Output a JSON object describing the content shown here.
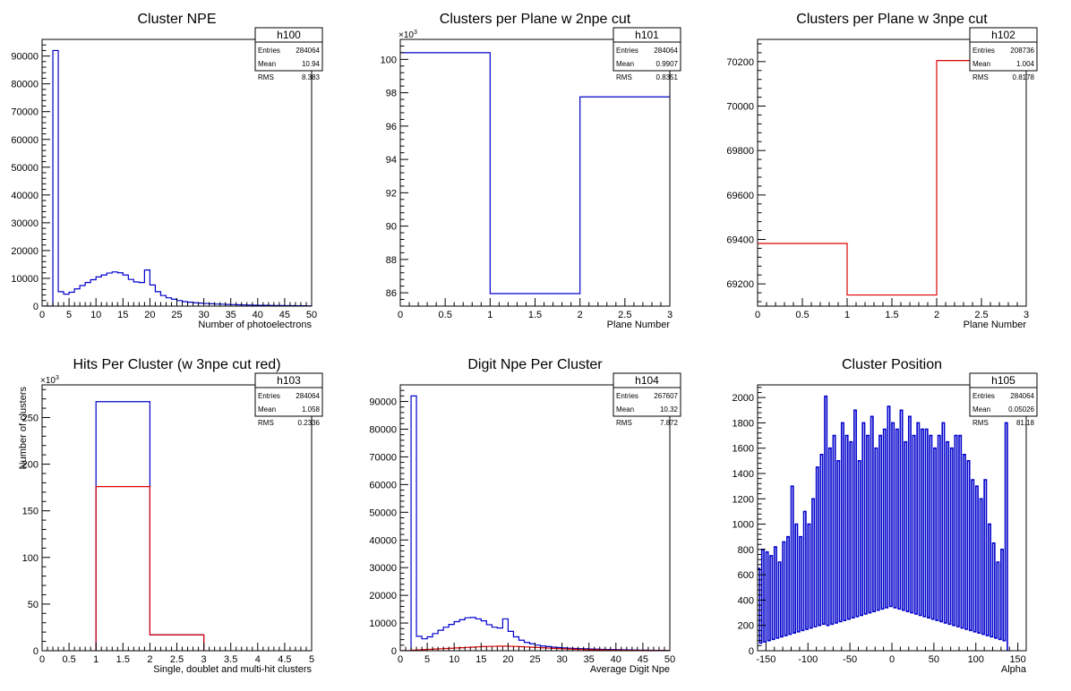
{
  "chart_data": [
    {
      "type": "histogram",
      "title": "Cluster NPE",
      "xlabel": "Number of photoelectrons",
      "ylabel": "",
      "xlim": [
        0,
        50
      ],
      "ylim": [
        0,
        96000
      ],
      "exponent": "",
      "xticks": [
        0,
        5,
        10,
        15,
        20,
        25,
        30,
        35,
        40,
        45,
        50
      ],
      "yticks": [
        0,
        10000,
        20000,
        30000,
        40000,
        50000,
        60000,
        70000,
        80000,
        90000
      ],
      "stats": {
        "name": "h100",
        "rows": [
          [
            "Entries",
            "284064"
          ],
          [
            "Mean",
            "10.94"
          ],
          [
            "RMS",
            "8.383"
          ]
        ]
      },
      "series": [
        {
          "color": "#0000cc",
          "x_start": 0,
          "bin_width": 1,
          "values": [
            0,
            0,
            92000,
            5200,
            4300,
            5000,
            6200,
            7400,
            8500,
            9500,
            10500,
            11200,
            11900,
            12300,
            12000,
            11200,
            9600,
            8700,
            8500,
            13000,
            7600,
            5200,
            3800,
            3000,
            2500,
            2000,
            1600,
            1400,
            1200,
            1100,
            950,
            850,
            750,
            700,
            600,
            550,
            480,
            430,
            380,
            340,
            300,
            270,
            240,
            210,
            190,
            170,
            150,
            130,
            110,
            90
          ]
        }
      ]
    },
    {
      "type": "histogram",
      "title": "Clusters per Plane w 2npe cut",
      "xlabel": "Plane Number",
      "ylabel": "",
      "xlim": [
        0,
        3
      ],
      "ylim": [
        85.2,
        101.2
      ],
      "exponent": "×10³",
      "xticks": [
        0,
        0.5,
        1,
        1.5,
        2,
        2.5,
        3
      ],
      "yticks": [
        86,
        88,
        90,
        92,
        94,
        96,
        98,
        100
      ],
      "stats": {
        "name": "h101",
        "rows": [
          [
            "Entries",
            "284064"
          ],
          [
            "Mean",
            "0.9907"
          ],
          [
            "RMS",
            "0.8351"
          ]
        ]
      },
      "series": [
        {
          "color": "#0000cc",
          "x_start": 0,
          "bin_width": 1,
          "values": [
            100.4,
            85.95,
            97.75
          ]
        }
      ]
    },
    {
      "type": "histogram",
      "title": "Clusters per Plane w 3npe cut",
      "xlabel": "Plane Number",
      "ylabel": "",
      "xlim": [
        0,
        3
      ],
      "ylim": [
        69100,
        70300
      ],
      "exponent": "",
      "xticks": [
        0,
        0.5,
        1,
        1.5,
        2,
        2.5,
        3
      ],
      "yticks": [
        69200,
        69400,
        69600,
        69800,
        70000,
        70200
      ],
      "stats": {
        "name": "h102",
        "rows": [
          [
            "Entries",
            "208736"
          ],
          [
            "Mean",
            "1.004"
          ],
          [
            "RMS",
            "0.8178"
          ]
        ]
      },
      "series": [
        {
          "color": "#dd0000",
          "x_start": 0,
          "bin_width": 1,
          "values": [
            69382,
            69150,
            70205
          ]
        }
      ]
    },
    {
      "type": "histogram",
      "title": "Hits Per Cluster (w 3npe cut red)",
      "xlabel": "Single, doublet and multi-hit clusters",
      "ylabel": "Number of clusters",
      "xlim": [
        0,
        5
      ],
      "ylim": [
        0,
        285
      ],
      "exponent": "×10³",
      "xticks": [
        0,
        0.5,
        1,
        1.5,
        2,
        2.5,
        3,
        3.5,
        4,
        4.5,
        5
      ],
      "yticks": [
        0,
        50,
        100,
        150,
        200,
        250
      ],
      "stats": {
        "name": "h103",
        "rows": [
          [
            "Entries",
            "284064"
          ],
          [
            "Mean",
            "1.058"
          ],
          [
            "RMS",
            "0.2336"
          ]
        ]
      },
      "series": [
        {
          "color": "#0000cc",
          "x_start": 1,
          "bin_width": 1,
          "values": [
            267,
            17
          ]
        },
        {
          "color": "#dd0000",
          "x_start": 1,
          "bin_width": 1,
          "values": [
            176,
            17
          ]
        }
      ]
    },
    {
      "type": "histogram",
      "title": "Digit Npe Per Cluster",
      "xlabel": "Average Digit Npe",
      "ylabel": "",
      "xlim": [
        0,
        50
      ],
      "ylim": [
        0,
        96000
      ],
      "exponent": "",
      "xticks": [
        0,
        5,
        10,
        15,
        20,
        25,
        30,
        35,
        40,
        45,
        50
      ],
      "yticks": [
        0,
        10000,
        20000,
        30000,
        40000,
        50000,
        60000,
        70000,
        80000,
        90000
      ],
      "stats": {
        "name": "h104",
        "rows": [
          [
            "Entries",
            "267607"
          ],
          [
            "Mean",
            "10.32"
          ],
          [
            "RMS",
            "7.872"
          ]
        ]
      },
      "series": [
        {
          "color": "#0000cc",
          "x_start": 0,
          "bin_width": 1,
          "values": [
            0,
            0,
            92000,
            5200,
            4300,
            5000,
            6200,
            7400,
            8500,
            9500,
            10500,
            11200,
            11900,
            12000,
            11500,
            10800,
            9400,
            8500,
            8200,
            11500,
            7000,
            5000,
            3800,
            3000,
            2500,
            2000,
            1700,
            1500,
            1300,
            1150,
            1000,
            900,
            800,
            750,
            680,
            620,
            560,
            500,
            450,
            400,
            360,
            320,
            280,
            250,
            220,
            190,
            160,
            140,
            120,
            100
          ]
        },
        {
          "color": "#dd0000",
          "x_start": 0,
          "bin_width": 1,
          "values": [
            0,
            0,
            200,
            300,
            400,
            500,
            600,
            700,
            800,
            900,
            1000,
            1100,
            1200,
            1300,
            1400,
            1500,
            1550,
            1600,
            1650,
            1650,
            1600,
            1550,
            1450,
            1350,
            1250,
            1150,
            1050,
            950,
            850,
            760,
            680,
            600,
            530,
            470,
            410,
            360,
            320,
            280,
            250,
            220,
            190,
            170,
            150,
            130,
            110,
            95,
            80,
            70,
            60,
            50
          ]
        }
      ]
    },
    {
      "type": "histogram",
      "title": "Cluster Position",
      "xlabel": "Alpha",
      "ylabel": "",
      "xlim": [
        -160,
        160
      ],
      "ylim": [
        0,
        2100
      ],
      "exponent": "",
      "xticks": [
        -150,
        -100,
        -50,
        0,
        50,
        100,
        150
      ],
      "yticks": [
        0,
        200,
        400,
        600,
        800,
        1000,
        1200,
        1400,
        1600,
        1800,
        2000
      ],
      "stats": {
        "name": "h105",
        "rows": [
          [
            "Entries",
            "284064"
          ],
          [
            "Mean",
            "0.05026"
          ],
          [
            "RMS",
            "81.18"
          ]
        ]
      },
      "series": [
        {
          "color": "#0000cc",
          "x_start": -160,
          "bin_width": 2.5,
          "values": [
            650,
            60,
            800,
            70,
            780,
            80,
            750,
            90,
            820,
            100,
            700,
            110,
            860,
            120,
            900,
            130,
            1300,
            140,
            1000,
            150,
            900,
            160,
            1100,
            170,
            1000,
            180,
            1200,
            190,
            1450,
            200,
            1550,
            210,
            2010,
            200,
            1600,
            210,
            1700,
            220,
            1500,
            230,
            1800,
            240,
            1700,
            250,
            1650,
            260,
            1900,
            270,
            1500,
            280,
            1800,
            290,
            1700,
            300,
            1850,
            310,
            1600,
            320,
            1700,
            330,
            1750,
            340,
            1930,
            350,
            1800,
            340,
            1750,
            330,
            1900,
            320,
            1650,
            310,
            1850,
            300,
            1700,
            290,
            1800,
            280,
            1750,
            270,
            1750,
            260,
            1700,
            250,
            1600,
            240,
            1700,
            230,
            1800,
            220,
            1650,
            210,
            1600,
            200,
            1700,
            190,
            1700,
            180,
            1550,
            170,
            1500,
            160,
            1350,
            150,
            1300,
            140,
            1200,
            130,
            1350,
            120,
            1000,
            110,
            850,
            100,
            700,
            90,
            800,
            80,
            1800
          ]
        }
      ]
    }
  ]
}
